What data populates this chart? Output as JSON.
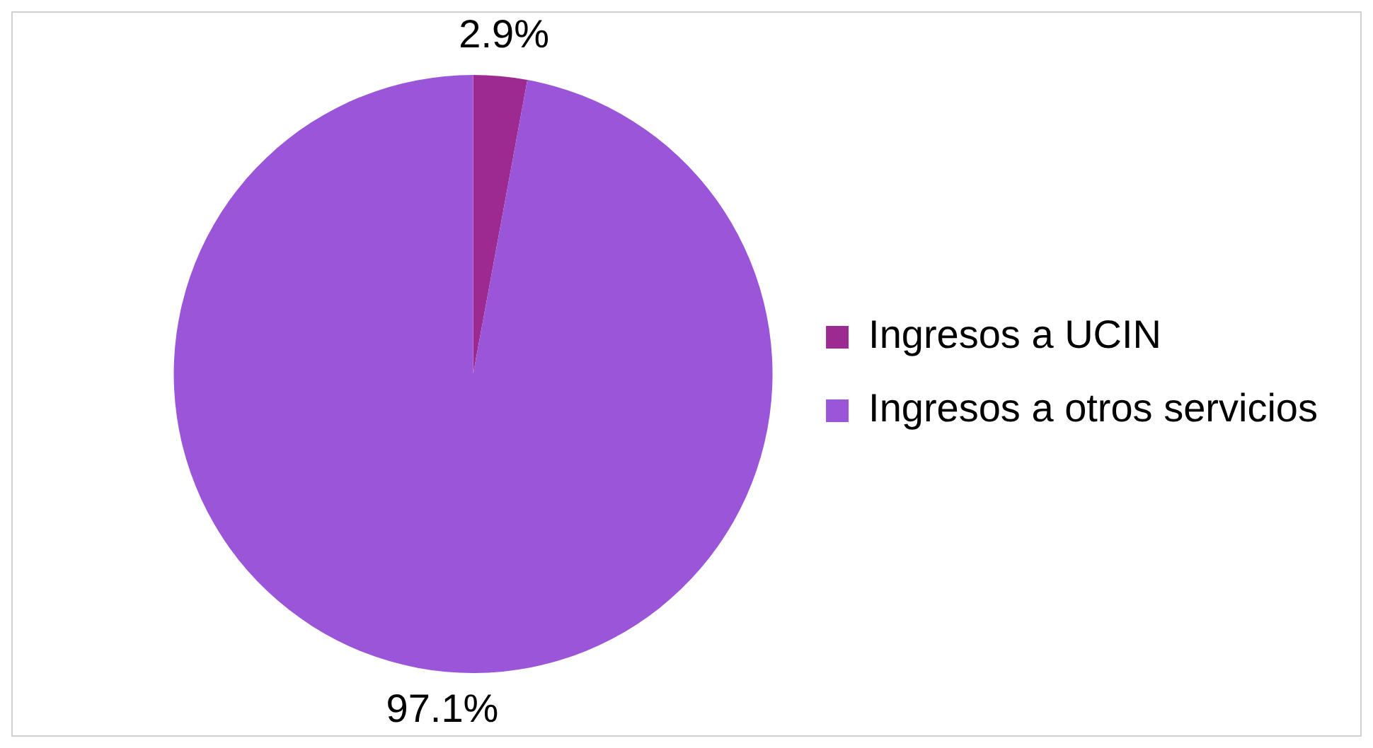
{
  "chart_data": {
    "type": "pie",
    "categories": [
      "Ingresos a UCIN",
      "Ingresos a otros servicios"
    ],
    "values": [
      2.9,
      97.1
    ],
    "value_labels": [
      "2.9%",
      "97.1%"
    ],
    "colors": [
      "#9c2a90",
      "#9b55d8"
    ],
    "legend": "right"
  }
}
